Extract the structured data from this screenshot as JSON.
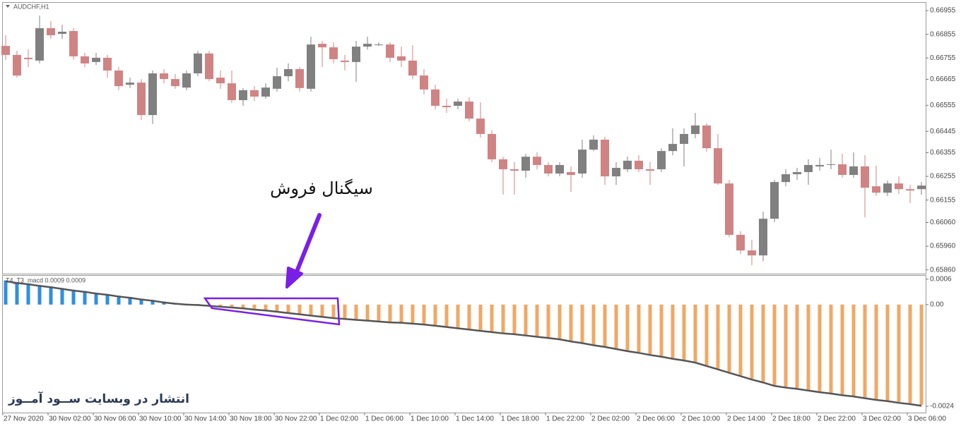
{
  "chart_data": [
    {
      "type": "candlestick",
      "title": "AUDCHF,H1",
      "categories": [
        "27 Nov 2020",
        null,
        null,
        null,
        "30 Nov 02:00",
        null,
        null,
        null,
        "30 Nov 06:00",
        null,
        null,
        null,
        "30 Nov 10:00",
        null,
        null,
        null,
        "30 Nov 14:00",
        null,
        null,
        null,
        "30 Nov 18:00",
        null,
        null,
        null,
        "30 Nov 22:00",
        null,
        null,
        null,
        "1 Dec 02:00",
        null,
        null,
        null,
        "1 Dec 06:00",
        null,
        null,
        null,
        "1 Dec 10:00",
        null,
        null,
        null,
        "1 Dec 14:00",
        null,
        null,
        null,
        "1 Dec 18:00",
        null,
        null,
        null,
        "1 Dec 22:00",
        null,
        null,
        null,
        "2 Dec 02:00",
        null,
        null,
        null,
        "2 Dec 06:00",
        null,
        null,
        null,
        "2 Dec 10:00",
        null,
        null,
        null,
        "2 Dec 14:00",
        null,
        null,
        null,
        "2 Dec 18:00",
        null,
        null,
        null,
        "2 Dec 22:00",
        null,
        null,
        null,
        "3 Dec 02:00",
        null,
        null,
        null,
        "3 Dec 06:00",
        null
      ],
      "open": [
        0.66806,
        0.66768,
        0.66756,
        0.66744,
        0.66881,
        0.66857,
        0.66869,
        0.66762,
        0.66738,
        0.66756,
        0.66702,
        0.66642,
        0.66651,
        0.66514,
        0.6669,
        0.66666,
        0.6663,
        0.6669,
        0.66774,
        0.66672,
        0.66648,
        0.66577,
        0.66619,
        0.66592,
        0.66625,
        0.66678,
        0.66708,
        0.66625,
        0.66815,
        0.668,
        0.66744,
        0.66738,
        0.66803,
        0.66812,
        0.66812,
        0.66762,
        0.66744,
        0.66681,
        0.66622,
        0.66553,
        0.66553,
        0.66571,
        0.66499,
        0.66434,
        0.66327,
        0.66285,
        0.66279,
        0.66338,
        0.66303,
        0.66267,
        0.66273,
        0.66267,
        0.66368,
        0.6641,
        0.66255,
        0.66285,
        0.66321,
        0.66285,
        0.66285,
        0.66362,
        0.66392,
        0.66434,
        0.6647,
        0.66374,
        0.66225,
        0.66008,
        0.65942,
        0.65921,
        0.66076,
        0.66231,
        0.66264,
        0.66273,
        0.66297,
        0.66306,
        0.66306,
        0.66261,
        0.66297,
        0.66213,
        0.66186,
        0.66225,
        0.66201,
        0.66201
      ],
      "high": [
        0.66851,
        0.66785,
        0.66791,
        0.66934,
        0.66911,
        0.66896,
        0.66881,
        0.66777,
        0.66777,
        0.66768,
        0.66717,
        0.66672,
        0.66666,
        0.66702,
        0.66708,
        0.66687,
        0.66702,
        0.66785,
        0.66785,
        0.66702,
        0.66702,
        0.66628,
        0.66636,
        0.66648,
        0.66714,
        0.66732,
        0.66717,
        0.66845,
        0.66827,
        0.66821,
        0.66768,
        0.66827,
        0.66845,
        0.66821,
        0.66821,
        0.66803,
        0.66809,
        0.66708,
        0.66642,
        0.66583,
        0.66583,
        0.66589,
        0.66568,
        0.66449,
        0.66338,
        0.66315,
        0.6635,
        0.66356,
        0.66315,
        0.66315,
        0.66297,
        0.6641,
        0.66428,
        0.66422,
        0.66315,
        0.66338,
        0.66344,
        0.66315,
        0.66374,
        0.66458,
        0.66458,
        0.66523,
        0.66479,
        0.66434,
        0.6624,
        0.66023,
        0.65987,
        0.66106,
        0.6624,
        0.66285,
        0.66291,
        0.66327,
        0.66332,
        0.66368,
        0.6635,
        0.66356,
        0.66344,
        0.663,
        0.66237,
        0.66255,
        0.66219,
        0.66231
      ],
      "low": [
        0.66747,
        0.66672,
        0.66717,
        0.66732,
        0.66836,
        0.66836,
        0.66747,
        0.66717,
        0.66726,
        0.66672,
        0.66619,
        0.66628,
        0.66493,
        0.66476,
        0.66648,
        0.66625,
        0.66619,
        0.66678,
        0.66657,
        0.66625,
        0.66565,
        0.66553,
        0.66574,
        0.66583,
        0.66613,
        0.66657,
        0.66613,
        0.66613,
        0.66717,
        0.66732,
        0.66702,
        0.66654,
        0.66791,
        0.66806,
        0.66738,
        0.66717,
        0.66666,
        0.66601,
        0.66538,
        0.66523,
        0.66538,
        0.66487,
        0.66419,
        0.66315,
        0.66178,
        0.66178,
        0.66249,
        0.66285,
        0.66255,
        0.66255,
        0.66189,
        0.66249,
        0.66362,
        0.66219,
        0.66219,
        0.66273,
        0.66273,
        0.66219,
        0.66273,
        0.66344,
        0.66297,
        0.66416,
        0.66359,
        0.66219,
        0.65999,
        0.65927,
        0.6588,
        0.65897,
        0.66061,
        0.66213,
        0.6624,
        0.66219,
        0.66279,
        0.66285,
        0.66249,
        0.66249,
        0.66082,
        0.66172,
        0.66172,
        0.66181,
        0.66142,
        0.66178
      ],
      "close": [
        0.66768,
        0.66681,
        0.6675,
        0.66881,
        0.66851,
        0.66866,
        0.66762,
        0.66732,
        0.66756,
        0.66702,
        0.66636,
        0.66651,
        0.66514,
        0.6669,
        0.66666,
        0.66636,
        0.6669,
        0.66774,
        0.66666,
        0.66648,
        0.66577,
        0.66619,
        0.66592,
        0.6663,
        0.66678,
        0.66708,
        0.66628,
        0.66812,
        0.668,
        0.6675,
        0.66738,
        0.66803,
        0.66815,
        0.66812,
        0.66756,
        0.66744,
        0.66681,
        0.66622,
        0.66553,
        0.66547,
        0.66571,
        0.66499,
        0.66434,
        0.66327,
        0.66285,
        0.66279,
        0.66338,
        0.66303,
        0.66267,
        0.66303,
        0.66261,
        0.66368,
        0.6641,
        0.66255,
        0.66291,
        0.66321,
        0.66285,
        0.66279,
        0.66362,
        0.66392,
        0.66434,
        0.6647,
        0.66374,
        0.66225,
        0.66008,
        0.65942,
        0.65921,
        0.66076,
        0.66231,
        0.66264,
        0.66273,
        0.66303,
        0.66303,
        0.66306,
        0.66261,
        0.66297,
        0.66207,
        0.66186,
        0.66225,
        0.66201,
        0.66195,
        0.66216
      ],
      "up_color": "#808080",
      "down_color": "#d08383",
      "ylim": [
        0.65844,
        0.66991
      ],
      "yticks": [
        0.66955,
        0.66855,
        0.66755,
        0.66665,
        0.66555,
        0.66445,
        0.66355,
        0.66255,
        0.66155,
        {
          "value": 0.6606,
          "label": "0.66060"
        },
        {
          "value": 0.6596,
          "label": "0.65960"
        },
        {
          "value": 0.6586,
          "label": "0.65860"
        }
      ]
    },
    {
      "type": "bar",
      "title": "T4_T3_macd 0.0009 0.0009",
      "values": [
        0.00057,
        0.00053,
        0.0005,
        0.00046,
        0.00043,
        0.00039,
        0.00035,
        0.00032,
        0.00028,
        0.00025,
        0.00021,
        0.00018,
        0.00014,
        0.00011,
        7e-05,
        4e-05,
        2e-05,
        1e-05,
        -1e-05,
        -3e-05,
        -5e-05,
        -7e-05,
        -0.0001,
        -0.00012,
        -0.00015,
        -0.00018,
        -0.00021,
        -0.00024,
        -0.00027,
        -0.0003,
        -0.00032,
        -0.00034,
        -0.00036,
        -0.00038,
        -0.0004,
        -0.00041,
        -0.00043,
        -0.00045,
        -0.00048,
        -0.00051,
        -0.00054,
        -0.00057,
        -0.0006,
        -0.00063,
        -0.00066,
        -0.00068,
        -0.00071,
        -0.00074,
        -0.00077,
        -0.0008,
        -0.00085,
        -0.00089,
        -0.00094,
        -0.00098,
        -0.00103,
        -0.00108,
        -0.00112,
        -0.00117,
        -0.00121,
        -0.00126,
        -0.0013,
        -0.00135,
        -0.00143,
        -0.00151,
        -0.00159,
        -0.00167,
        -0.00175,
        -0.00182,
        -0.0019,
        -0.00194,
        -0.00197,
        -0.00201,
        -0.00205,
        -0.00208,
        -0.00212,
        -0.00215,
        -0.00219,
        -0.00223,
        -0.00226,
        -0.0023,
        -0.00233,
        -0.00237
      ],
      "positive_color": "#2e8fe0",
      "negative_color": "#f0a864",
      "line": {
        "color": "#555555",
        "values": [
          0.00055,
          0.00051,
          0.00048,
          0.00044,
          0.00041,
          0.00037,
          0.00033,
          0.0003,
          0.00026,
          0.00023,
          0.00019,
          0.00016,
          0.00012,
          9e-05,
          5e-05,
          2e-05,
          0,
          -1e-05,
          -3e-05,
          -5e-05,
          -7e-05,
          -9e-05,
          -0.00012,
          -0.00014,
          -0.00017,
          -0.0002,
          -0.00023,
          -0.00026,
          -0.00029,
          -0.00032,
          -0.00034,
          -0.00036,
          -0.00038,
          -0.0004,
          -0.00042,
          -0.00043,
          -0.00045,
          -0.00047,
          -0.0005,
          -0.00053,
          -0.00056,
          -0.00059,
          -0.00062,
          -0.00065,
          -0.00068,
          -0.0007,
          -0.00073,
          -0.00076,
          -0.00079,
          -0.00082,
          -0.00087,
          -0.00091,
          -0.00096,
          -0.001,
          -0.00105,
          -0.0011,
          -0.00114,
          -0.00119,
          -0.00123,
          -0.00128,
          -0.00132,
          -0.00137,
          -0.00145,
          -0.00153,
          -0.00161,
          -0.00169,
          -0.00177,
          -0.00184,
          -0.00192,
          -0.00196,
          -0.00199,
          -0.00203,
          -0.00207,
          -0.0021,
          -0.00214,
          -0.00217,
          -0.00221,
          -0.00225,
          -0.00228,
          -0.00232,
          -0.00235,
          -0.00239
        ]
      },
      "ylim": [
        -0.00255,
        0.00068
      ],
      "yticks": [
        0.0006,
        {
          "value": 0,
          "label": "0.00"
        },
        -0.0024
      ]
    }
  ],
  "annotations": {
    "sell_signal": "سیگنال فروش",
    "watermark": "انتشار در وبسایت ســود آمــوز"
  }
}
